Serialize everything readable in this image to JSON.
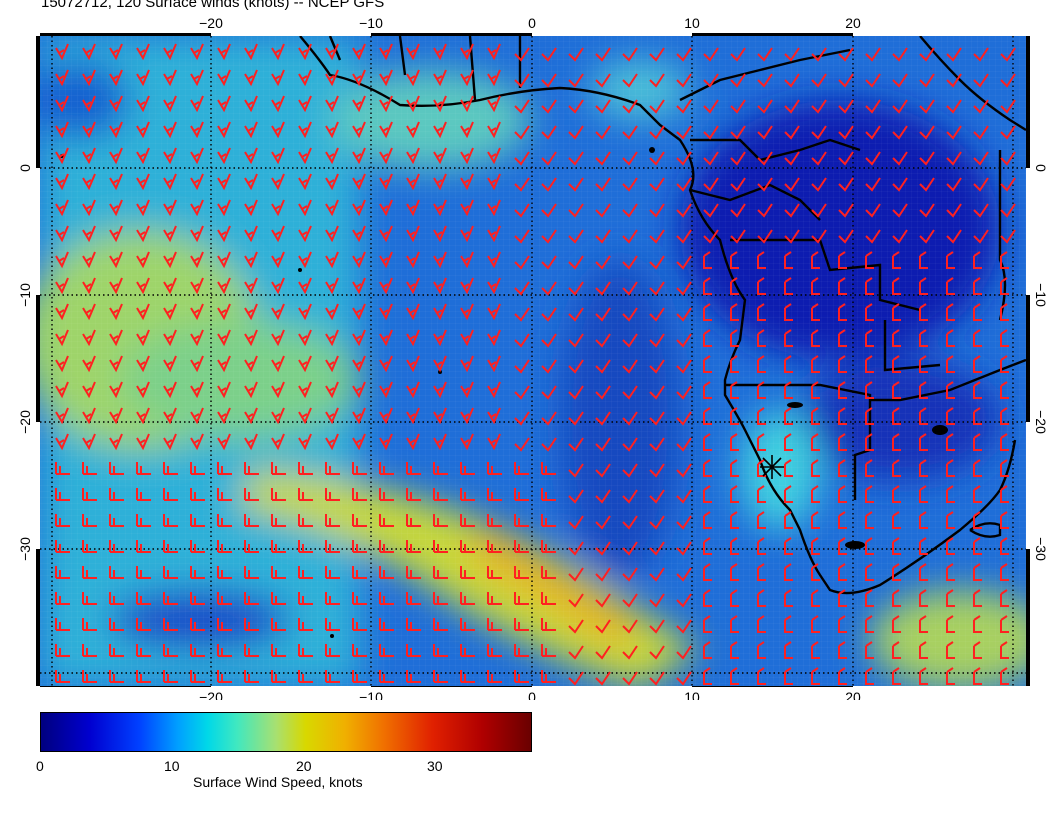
{
  "title": "15072712, 120 Surface winds (knots) -- NCEP GFS",
  "map": {
    "lon_ticks": [
      "−20",
      "−10",
      "0",
      "10",
      "20"
    ],
    "lat_ticks": [
      "0",
      "−10",
      "−20",
      "−30"
    ],
    "barb_color": "#ff2020",
    "coast_color": "#000000"
  },
  "colorbar": {
    "label": "Surface Wind Speed, knots",
    "ticks": [
      "0",
      "10",
      "20",
      "30"
    ],
    "range": [
      0,
      37
    ]
  }
}
